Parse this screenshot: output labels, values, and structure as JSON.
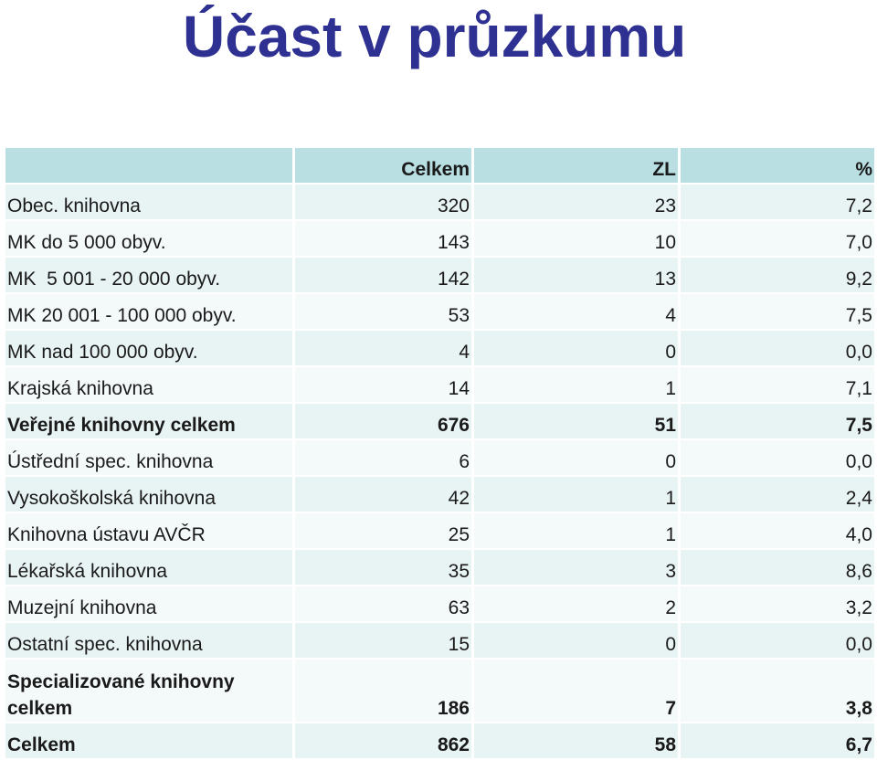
{
  "title": "Účast v průzkumu",
  "table": {
    "headers": [
      "",
      "Celkem",
      "ZL",
      "%"
    ],
    "rows": [
      {
        "label": "Obec. knihovna",
        "total": "320",
        "zl": "23",
        "pct": "7,2"
      },
      {
        "label": "MK do 5 000 obyv.",
        "total": "143",
        "zl": "10",
        "pct": "7,0"
      },
      {
        "label": "MK  5 001 - 20 000 obyv.",
        "total": "142",
        "zl": "13",
        "pct": "9,2"
      },
      {
        "label": "MK 20 001 - 100 000 obyv.",
        "total": "53",
        "zl": "4",
        "pct": "7,5"
      },
      {
        "label": "MK nad 100 000 obyv.",
        "total": "4",
        "zl": "0",
        "pct": "0,0"
      },
      {
        "label": "Krajská knihovna",
        "total": "14",
        "zl": "1",
        "pct": "7,1"
      },
      {
        "label": "Veřejné knihovny celkem",
        "total": "676",
        "zl": "51",
        "pct": "7,5"
      },
      {
        "label": "Ústřední spec. knihovna",
        "total": "6",
        "zl": "0",
        "pct": "0,0"
      },
      {
        "label": "Vysokoškolská knihovna",
        "total": "42",
        "zl": "1",
        "pct": "2,4"
      },
      {
        "label": "Knihovna ústavu AVČR",
        "total": "25",
        "zl": "1",
        "pct": "4,0"
      },
      {
        "label": "Lékařská knihovna",
        "total": "35",
        "zl": "3",
        "pct": "8,6"
      },
      {
        "label": "Muzejní knihovna",
        "total": "63",
        "zl": "2",
        "pct": "3,2"
      },
      {
        "label": "Ostatní spec. knihovna",
        "total": "15",
        "zl": "0",
        "pct": "0,0"
      },
      {
        "label": "Specializované knihovny celkem",
        "total": "186",
        "zl": "7",
        "pct": "3,8"
      },
      {
        "label": "Celkem",
        "total": "862",
        "zl": "58",
        "pct": "6,7"
      }
    ]
  },
  "colors": {
    "title": "#2e3192",
    "header_bg": "#b9dfe2",
    "row_bg_a": "#e8f3f4",
    "row_bg_b": "#f4f9fa"
  }
}
